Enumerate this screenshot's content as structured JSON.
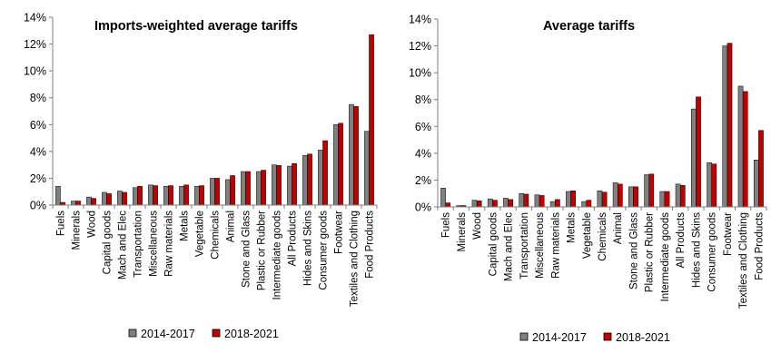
{
  "colors": {
    "series_2014_2017": "#808080",
    "series_2018_2021": "#c00000",
    "axis": "#7f7f7f"
  },
  "legend": {
    "placement": "bottom",
    "labels": [
      "2014-2017",
      "2018-2021"
    ]
  },
  "chart_data": [
    {
      "type": "bar",
      "title": "Imports-weighted  average tariffs",
      "xlabel": "",
      "ylabel": "",
      "ylim": [
        0,
        14
      ],
      "yticks": [
        "0%",
        "2%",
        "4%",
        "6%",
        "8%",
        "10%",
        "12%",
        "14%"
      ],
      "grid": false,
      "categories": [
        "Fuels",
        "Minerals",
        "Wood",
        "Capital goods",
        "Mach and Elec",
        "Transportation",
        "Miscellaneous",
        "Raw materials",
        "Metals",
        "Vegetable",
        "Chemicals",
        "Animal",
        "Stone and Glass",
        "Plastic or Rubber",
        "Intermediate goods",
        "All Products",
        "Hides and Skins",
        "Consumer goods",
        "Footwear",
        "Textiles and Clothing",
        "Food Products"
      ],
      "series": [
        {
          "name": "2014-2017",
          "values": [
            1.4,
            0.3,
            0.6,
            0.95,
            1.05,
            1.3,
            1.5,
            1.4,
            1.4,
            1.4,
            2.0,
            1.9,
            2.5,
            2.5,
            3.0,
            2.9,
            3.7,
            4.1,
            6.0,
            7.5,
            5.5
          ]
        },
        {
          "name": "2018-2021",
          "values": [
            0.2,
            0.3,
            0.5,
            0.85,
            0.95,
            1.4,
            1.45,
            1.45,
            1.5,
            1.45,
            2.0,
            2.2,
            2.5,
            2.6,
            2.95,
            3.1,
            3.8,
            4.8,
            6.1,
            7.35,
            12.7
          ]
        }
      ]
    },
    {
      "type": "bar",
      "title": "Average tariffs",
      "xlabel": "",
      "ylabel": "",
      "ylim": [
        0,
        14
      ],
      "yticks": [
        "0%",
        "2%",
        "4%",
        "6%",
        "8%",
        "10%",
        "12%",
        "14%"
      ],
      "grid": false,
      "categories": [
        "Fuels",
        "Minerals",
        "Wood",
        "Capital goods",
        "Mach and Elec",
        "Transportation",
        "Miscellaneous",
        "Raw materials",
        "Metals",
        "Vegetable",
        "Chemicals",
        "Animal",
        "Stone and Glass",
        "Plastic or Rubber",
        "Intermediate goods",
        "All Products",
        "Hides and Skins",
        "Consumer goods",
        "Footwear",
        "Textiles and Clothing",
        "Food Products"
      ],
      "series": [
        {
          "name": "2014-2017",
          "values": [
            1.4,
            0.1,
            0.5,
            0.6,
            0.65,
            1.0,
            0.9,
            0.4,
            1.15,
            0.4,
            1.2,
            1.8,
            1.5,
            2.4,
            1.15,
            1.7,
            7.3,
            3.3,
            12.0,
            9.0,
            3.5
          ]
        },
        {
          "name": "2018-2021",
          "values": [
            0.3,
            0.1,
            0.45,
            0.5,
            0.55,
            0.95,
            0.85,
            0.55,
            1.2,
            0.5,
            1.1,
            1.7,
            1.5,
            2.45,
            1.15,
            1.6,
            8.2,
            3.2,
            12.2,
            8.6,
            5.7
          ]
        }
      ]
    }
  ]
}
